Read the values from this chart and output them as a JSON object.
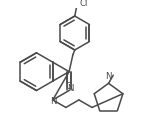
{
  "bg_color": "#ffffff",
  "line_color": "#4a4a4a",
  "line_width": 1.1,
  "font_size": 6.2,
  "figsize": [
    1.54,
    1.31
  ],
  "dpi": 100,
  "xlim": [
    0,
    154
  ],
  "ylim": [
    0,
    131
  ]
}
